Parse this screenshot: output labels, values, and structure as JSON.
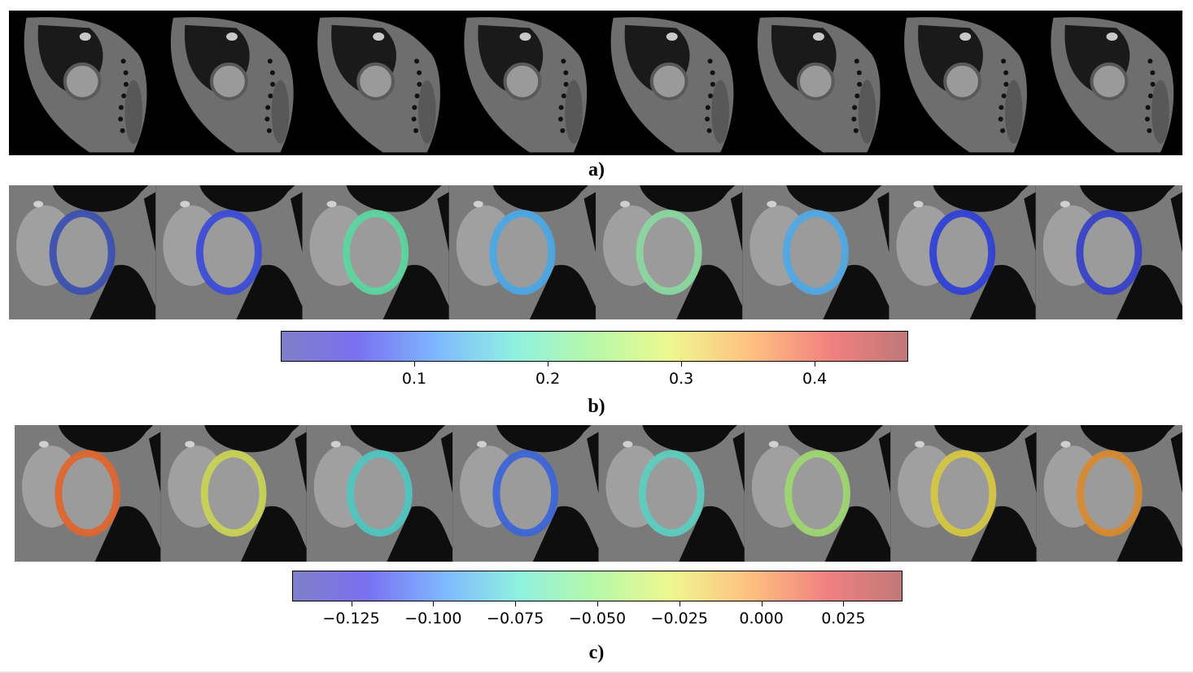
{
  "figure": {
    "panel_a": {
      "label": "a)",
      "frames": 8
    },
    "panel_b": {
      "label": "b)",
      "frames": 8,
      "ring_colors": [
        "#3a4fb0",
        "#3b4ad8",
        "#5ad7a0",
        "#4aa8e6",
        "#8bd9a0",
        "#4fa8e6",
        "#2e3fd6",
        "#3540c8"
      ],
      "colorbar": {
        "min": 0.0,
        "max": 0.47,
        "ticks": [
          "0.1",
          "0.2",
          "0.3",
          "0.4"
        ],
        "tick_values": [
          0.1,
          0.2,
          0.3,
          0.4
        ]
      }
    },
    "panel_c": {
      "label": "c)",
      "frames": 8,
      "ring_colors": [
        "#e0652d",
        "#c9d455",
        "#4fc7c0",
        "#3a64d8",
        "#5bcfbf",
        "#9ed870",
        "#d7c840",
        "#d88a30"
      ],
      "colorbar": {
        "min": -0.143,
        "max": 0.043,
        "ticks": [
          "−0.125",
          "−0.100",
          "−0.075",
          "−0.050",
          "−0.025",
          "0.000",
          "0.025"
        ],
        "tick_values": [
          -0.125,
          -0.1,
          -0.075,
          -0.05,
          -0.025,
          0.0,
          0.025
        ]
      }
    }
  }
}
